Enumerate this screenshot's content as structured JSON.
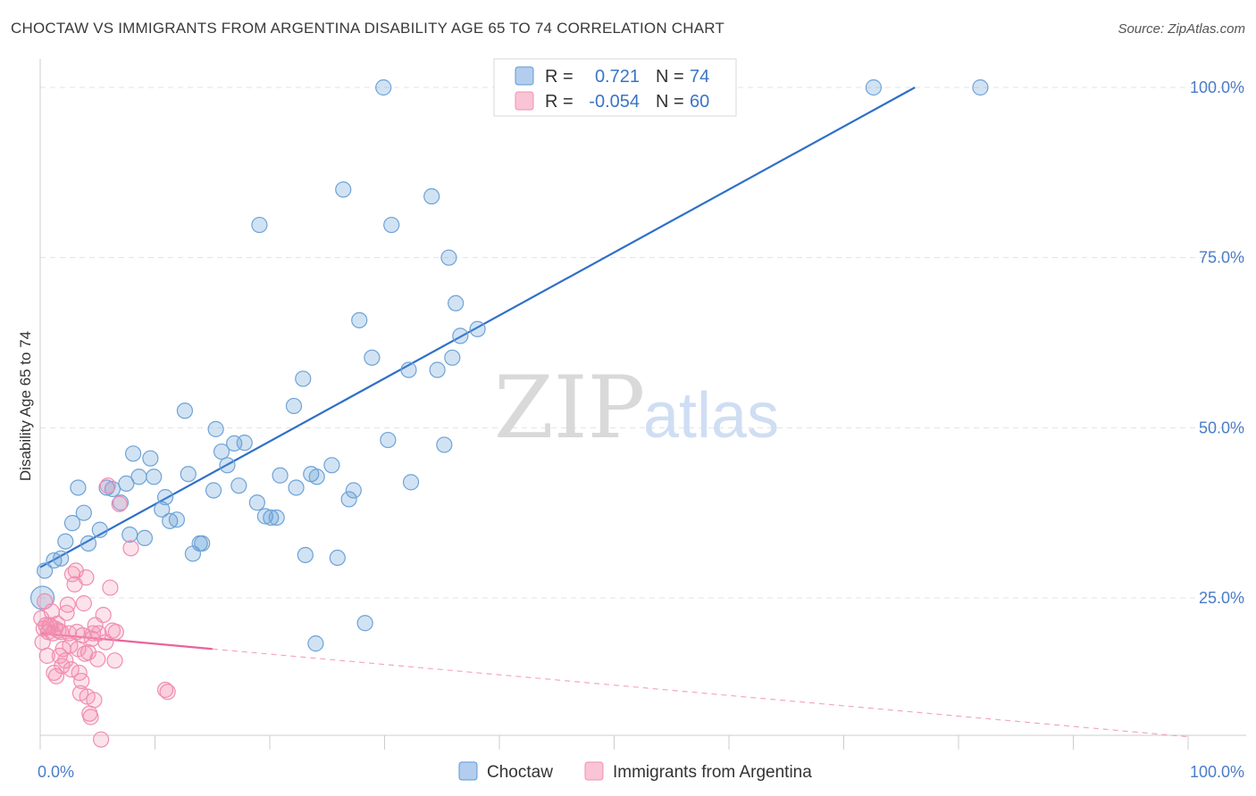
{
  "title": "CHOCTAW VS IMMIGRANTS FROM ARGENTINA DISABILITY AGE 65 TO 74 CORRELATION CHART",
  "source": "Source: ZipAtlas.com",
  "watermark": {
    "zip": "ZIP",
    "atlas": "atlas"
  },
  "legend_top": {
    "rows": [
      {
        "r_label": "R =",
        "r_value": "0.721",
        "n_label": "N =",
        "n_value": "74",
        "color": "#5b9bd5"
      },
      {
        "r_label": "R =",
        "r_value": "-0.054",
        "n_label": "N =",
        "n_value": "60",
        "color": "#f48fb1"
      }
    ]
  },
  "legend_bottom": {
    "items": [
      {
        "label": "Choctaw",
        "color": "#5b9bd5"
      },
      {
        "label": "Immigrants from Argentina",
        "color": "#f48fb1"
      }
    ]
  },
  "chart_data": {
    "type": "scatter",
    "title": "CHOCTAW VS IMMIGRANTS FROM ARGENTINA DISABILITY AGE 65 TO 74 CORRELATION CHART",
    "xlabel": "",
    "ylabel": "Disability Age 65 to 74",
    "xlim": [
      0,
      100
    ],
    "ylim": [
      0,
      102
    ],
    "x_tick_labels": [
      {
        "value": 0,
        "label": "0.0%"
      },
      {
        "value": 100,
        "label": "100.0%"
      }
    ],
    "y_tick_labels": [
      {
        "value": 25,
        "label": "25.0%"
      },
      {
        "value": 50,
        "label": "50.0%"
      },
      {
        "value": 75,
        "label": "75.0%"
      },
      {
        "value": 100,
        "label": "100.0%"
      }
    ],
    "grid": true,
    "legend_position": "top-center",
    "series": [
      {
        "name": "Choctaw",
        "color": "#5b9bd5",
        "trend": {
          "x0": 0,
          "y0": 29.5,
          "x1": 76.2,
          "y1": 100
        },
        "points": [
          [
            0.2,
            25
          ],
          [
            0.4,
            29
          ],
          [
            1.2,
            30.5
          ],
          [
            1.8,
            30.8
          ],
          [
            2.2,
            33.3
          ],
          [
            2.8,
            36
          ],
          [
            3.3,
            41.2
          ],
          [
            3.8,
            37.5
          ],
          [
            4.2,
            33
          ],
          [
            5.2,
            35
          ],
          [
            5.8,
            41.2
          ],
          [
            6.3,
            41
          ],
          [
            7.0,
            39
          ],
          [
            7.5,
            41.8
          ],
          [
            7.8,
            34.3
          ],
          [
            8.1,
            46.2
          ],
          [
            8.6,
            42.8
          ],
          [
            9.1,
            33.8
          ],
          [
            9.6,
            45.5
          ],
          [
            9.9,
            42.8
          ],
          [
            10.6,
            38
          ],
          [
            10.9,
            39.8
          ],
          [
            11.3,
            36.3
          ],
          [
            11.9,
            36.5
          ],
          [
            12.6,
            52.5
          ],
          [
            12.9,
            43.2
          ],
          [
            13.3,
            31.5
          ],
          [
            13.9,
            33
          ],
          [
            14.1,
            33
          ],
          [
            15.1,
            40.8
          ],
          [
            15.3,
            49.8
          ],
          [
            15.8,
            46.5
          ],
          [
            16.3,
            44.5
          ],
          [
            16.9,
            47.7
          ],
          [
            17.3,
            41.5
          ],
          [
            17.8,
            47.8
          ],
          [
            18.9,
            39
          ],
          [
            19.1,
            79.8
          ],
          [
            19.6,
            37
          ],
          [
            20.1,
            36.8
          ],
          [
            20.6,
            36.8
          ],
          [
            20.9,
            43
          ],
          [
            22.1,
            53.2
          ],
          [
            22.3,
            41.2
          ],
          [
            22.9,
            57.2
          ],
          [
            23.1,
            31.3
          ],
          [
            23.6,
            43.2
          ],
          [
            24.1,
            42.8
          ],
          [
            25.4,
            44.5
          ],
          [
            25.9,
            30.9
          ],
          [
            26.4,
            85
          ],
          [
            26.9,
            39.5
          ],
          [
            27.3,
            40.8
          ],
          [
            27.8,
            65.8
          ],
          [
            28.3,
            21.3
          ],
          [
            28.9,
            60.3
          ],
          [
            29.9,
            100
          ],
          [
            30.3,
            48.2
          ],
          [
            30.6,
            79.8
          ],
          [
            32.1,
            58.5
          ],
          [
            32.3,
            42
          ],
          [
            34.1,
            84
          ],
          [
            34.6,
            58.5
          ],
          [
            35.2,
            47.5
          ],
          [
            35.6,
            75
          ],
          [
            35.9,
            60.3
          ],
          [
            36.2,
            68.3
          ],
          [
            36.6,
            63.5
          ],
          [
            38.1,
            64.5
          ],
          [
            43.1,
            100
          ],
          [
            72.6,
            100
          ],
          [
            81.9,
            100
          ],
          [
            24.0,
            18.3
          ],
          [
            45.0,
            100
          ]
        ]
      },
      {
        "name": "Immigrants from Argentina",
        "color": "#f48fb1",
        "trend": {
          "x0": 0,
          "y0": 19.8,
          "x1": 15,
          "y1": 17.5
        },
        "trend_extended": {
          "x0": 15,
          "y0": 17.5,
          "x1": 100,
          "y1": 4.6
        },
        "points": [
          [
            0.1,
            22
          ],
          [
            0.3,
            20.5
          ],
          [
            0.5,
            21
          ],
          [
            0.7,
            20
          ],
          [
            0.9,
            20.8
          ],
          [
            1.1,
            19.8
          ],
          [
            1.3,
            20.5
          ],
          [
            1.5,
            21.2
          ],
          [
            1.6,
            20.2
          ],
          [
            1.8,
            20
          ],
          [
            0.6,
            16.5
          ],
          [
            1.0,
            23
          ],
          [
            1.2,
            14
          ],
          [
            1.4,
            13.5
          ],
          [
            1.7,
            16.5
          ],
          [
            2.0,
            17.5
          ],
          [
            2.2,
            15.8
          ],
          [
            2.4,
            24
          ],
          [
            2.5,
            19.8
          ],
          [
            2.6,
            18
          ],
          [
            2.7,
            14.5
          ],
          [
            2.8,
            28.5
          ],
          [
            3.0,
            27
          ],
          [
            3.2,
            20
          ],
          [
            3.3,
            17.5
          ],
          [
            3.4,
            14
          ],
          [
            3.5,
            11
          ],
          [
            3.6,
            12.8
          ],
          [
            3.7,
            19.5
          ],
          [
            3.8,
            24.2
          ],
          [
            3.9,
            16.8
          ],
          [
            4.0,
            28
          ],
          [
            4.1,
            10.5
          ],
          [
            4.2,
            17
          ],
          [
            4.3,
            8
          ],
          [
            4.4,
            7.5
          ],
          [
            4.6,
            19.8
          ],
          [
            4.7,
            10
          ],
          [
            4.8,
            21
          ],
          [
            5.0,
            16
          ],
          [
            5.1,
            19.8
          ],
          [
            5.3,
            4.2
          ],
          [
            5.5,
            22.5
          ],
          [
            5.7,
            18.5
          ],
          [
            5.9,
            41.5
          ],
          [
            6.1,
            26.5
          ],
          [
            6.3,
            20.2
          ],
          [
            6.5,
            15.8
          ],
          [
            6.6,
            20
          ],
          [
            6.9,
            38.8
          ],
          [
            7.9,
            32.3
          ],
          [
            10.9,
            11.5
          ],
          [
            11.1,
            11.2
          ],
          [
            0.2,
            18.5
          ],
          [
            0.4,
            24.5
          ],
          [
            0.8,
            21
          ],
          [
            1.9,
            15
          ],
          [
            2.3,
            22.8
          ],
          [
            3.1,
            29
          ],
          [
            4.5,
            19
          ]
        ]
      }
    ]
  }
}
